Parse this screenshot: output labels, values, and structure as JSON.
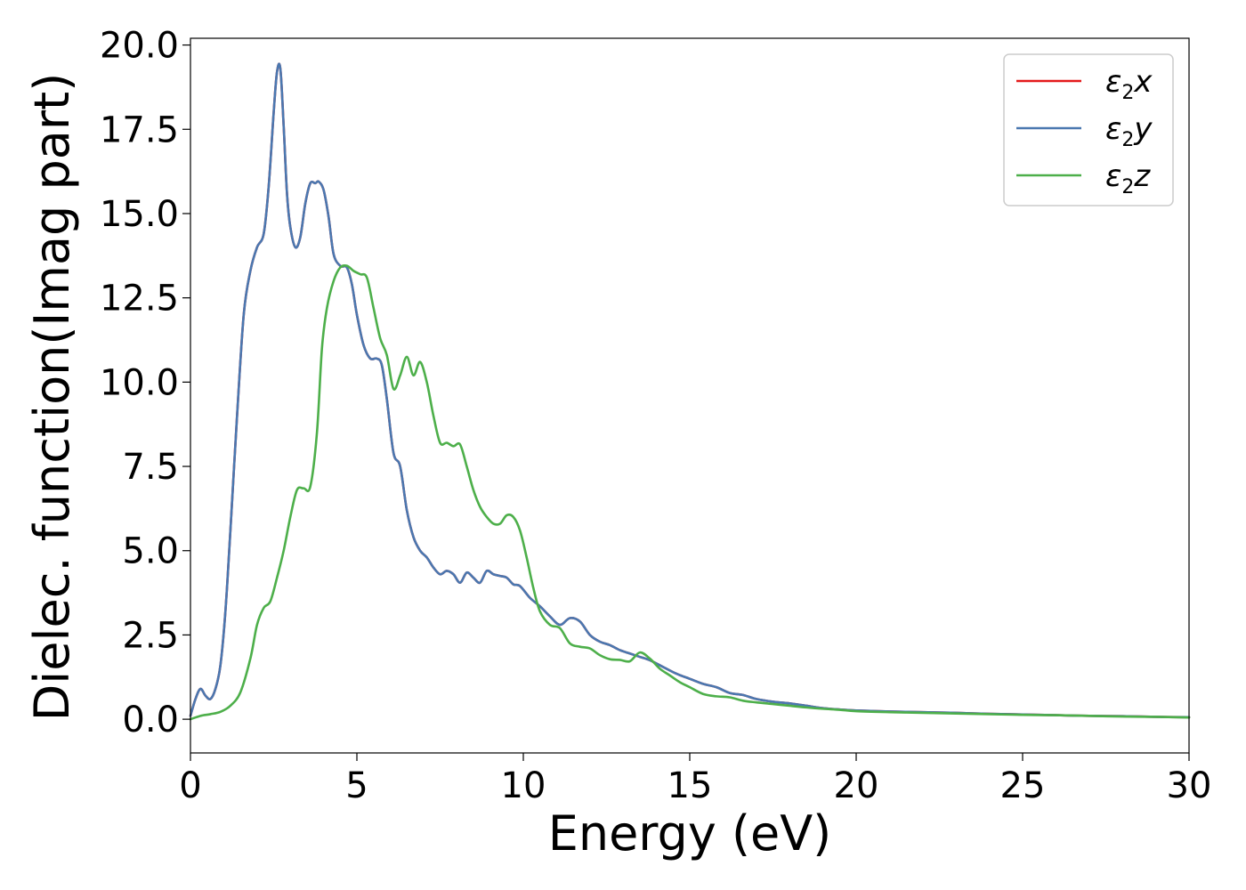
{
  "chart_data": {
    "type": "line",
    "title": "",
    "xlabel": "Energy (eV)",
    "ylabel": "Dielec. function(Imag part)",
    "xlim": [
      0,
      30
    ],
    "ylim": [
      -1,
      20.2
    ],
    "xticks": [
      0,
      5,
      10,
      15,
      20,
      25,
      30
    ],
    "xtick_labels": [
      "0",
      "5",
      "10",
      "15",
      "20",
      "25",
      "30"
    ],
    "yticks": [
      0,
      2.5,
      5,
      7.5,
      10,
      12.5,
      15,
      17.5,
      20
    ],
    "ytick_labels": [
      "0.0",
      "2.5",
      "5.0",
      "7.5",
      "10.0",
      "12.5",
      "15.0",
      "17.5",
      "20.0"
    ],
    "grid": false,
    "legend_position": "top-right",
    "series": [
      {
        "name": "ε2x",
        "legend_base": "ε",
        "legend_sub": "2",
        "legend_suffix": "x",
        "color": "#e41a1c",
        "x": [
          0,
          0.15,
          0.3,
          0.45,
          0.6,
          0.75,
          0.9,
          1.05,
          1.2,
          1.4,
          1.6,
          1.8,
          2.0,
          2.2,
          2.35,
          2.5,
          2.6,
          2.7,
          2.8,
          2.9,
          3.0,
          3.15,
          3.3,
          3.45,
          3.6,
          3.75,
          3.85,
          4.0,
          4.15,
          4.3,
          4.5,
          4.7,
          4.85,
          5.0,
          5.2,
          5.4,
          5.6,
          5.75,
          5.9,
          6.1,
          6.3,
          6.5,
          6.7,
          6.9,
          7.1,
          7.3,
          7.5,
          7.7,
          7.9,
          8.1,
          8.3,
          8.5,
          8.7,
          8.9,
          9.1,
          9.3,
          9.5,
          9.7,
          9.9,
          10.2,
          10.5,
          10.8,
          11.1,
          11.4,
          11.7,
          12.0,
          12.3,
          12.6,
          12.9,
          13.2,
          13.5,
          13.8,
          14.2,
          14.6,
          15.0,
          15.4,
          15.8,
          16.2,
          16.6,
          17.0,
          17.5,
          18.0,
          18.5,
          19.0,
          19.5,
          20.0,
          21.0,
          22.0,
          23.0,
          24.0,
          25.0,
          26.0,
          27.0,
          28.0,
          29.0,
          30.0
        ],
        "y": [
          0.1,
          0.6,
          0.9,
          0.7,
          0.6,
          0.9,
          1.6,
          3.2,
          5.6,
          9.0,
          12.0,
          13.3,
          14.0,
          14.4,
          15.8,
          18.0,
          19.2,
          19.3,
          17.6,
          15.6,
          14.6,
          14.0,
          14.3,
          15.3,
          15.9,
          15.9,
          15.95,
          15.7,
          14.9,
          13.8,
          13.45,
          13.4,
          12.9,
          12.0,
          11.1,
          10.7,
          10.7,
          10.5,
          9.5,
          7.9,
          7.5,
          6.2,
          5.4,
          5.0,
          4.8,
          4.5,
          4.3,
          4.4,
          4.3,
          4.05,
          4.35,
          4.2,
          4.05,
          4.4,
          4.3,
          4.25,
          4.2,
          4.0,
          3.95,
          3.6,
          3.35,
          3.05,
          2.8,
          3.0,
          2.9,
          2.5,
          2.3,
          2.2,
          2.05,
          1.95,
          1.85,
          1.75,
          1.55,
          1.35,
          1.2,
          1.05,
          0.95,
          0.78,
          0.72,
          0.6,
          0.52,
          0.47,
          0.4,
          0.33,
          0.29,
          0.26,
          0.23,
          0.21,
          0.19,
          0.16,
          0.14,
          0.12,
          0.1,
          0.09,
          0.07,
          0.06
        ]
      },
      {
        "name": "ε2y",
        "legend_base": "ε",
        "legend_sub": "2",
        "legend_suffix": "y",
        "color": "#4a78b0",
        "x": [
          0,
          0.15,
          0.3,
          0.45,
          0.6,
          0.75,
          0.9,
          1.05,
          1.2,
          1.4,
          1.6,
          1.8,
          2.0,
          2.2,
          2.35,
          2.5,
          2.6,
          2.7,
          2.8,
          2.9,
          3.0,
          3.15,
          3.3,
          3.45,
          3.6,
          3.75,
          3.85,
          4.0,
          4.15,
          4.3,
          4.5,
          4.7,
          4.85,
          5.0,
          5.2,
          5.4,
          5.6,
          5.75,
          5.9,
          6.1,
          6.3,
          6.5,
          6.7,
          6.9,
          7.1,
          7.3,
          7.5,
          7.7,
          7.9,
          8.1,
          8.3,
          8.5,
          8.7,
          8.9,
          9.1,
          9.3,
          9.5,
          9.7,
          9.9,
          10.2,
          10.5,
          10.8,
          11.1,
          11.4,
          11.7,
          12.0,
          12.3,
          12.6,
          12.9,
          13.2,
          13.5,
          13.8,
          14.2,
          14.6,
          15.0,
          15.4,
          15.8,
          16.2,
          16.6,
          17.0,
          17.5,
          18.0,
          18.5,
          19.0,
          19.5,
          20.0,
          21.0,
          22.0,
          23.0,
          24.0,
          25.0,
          26.0,
          27.0,
          28.0,
          29.0,
          30.0
        ],
        "y": [
          0.1,
          0.6,
          0.9,
          0.7,
          0.6,
          0.9,
          1.6,
          3.2,
          5.6,
          9.0,
          12.0,
          13.3,
          14.0,
          14.4,
          15.8,
          18.0,
          19.2,
          19.3,
          17.6,
          15.6,
          14.6,
          14.0,
          14.3,
          15.3,
          15.9,
          15.9,
          15.95,
          15.7,
          14.9,
          13.8,
          13.45,
          13.4,
          12.9,
          12.0,
          11.1,
          10.7,
          10.7,
          10.5,
          9.5,
          7.9,
          7.5,
          6.2,
          5.4,
          5.0,
          4.8,
          4.5,
          4.3,
          4.4,
          4.3,
          4.05,
          4.35,
          4.2,
          4.05,
          4.4,
          4.3,
          4.25,
          4.2,
          4.0,
          3.95,
          3.6,
          3.35,
          3.05,
          2.8,
          3.0,
          2.9,
          2.5,
          2.3,
          2.2,
          2.05,
          1.95,
          1.85,
          1.75,
          1.55,
          1.35,
          1.2,
          1.05,
          0.95,
          0.78,
          0.72,
          0.6,
          0.52,
          0.47,
          0.4,
          0.33,
          0.29,
          0.26,
          0.23,
          0.21,
          0.19,
          0.16,
          0.14,
          0.12,
          0.1,
          0.09,
          0.07,
          0.06
        ]
      },
      {
        "name": "ε2z",
        "legend_base": "ε",
        "legend_sub": "2",
        "legend_suffix": "z",
        "color": "#4daf4a",
        "x": [
          0,
          0.3,
          0.6,
          0.9,
          1.2,
          1.5,
          1.8,
          2.0,
          2.2,
          2.4,
          2.6,
          2.8,
          3.0,
          3.2,
          3.4,
          3.6,
          3.8,
          3.95,
          4.1,
          4.3,
          4.5,
          4.7,
          4.9,
          5.1,
          5.3,
          5.5,
          5.7,
          5.9,
          6.1,
          6.3,
          6.5,
          6.7,
          6.9,
          7.1,
          7.3,
          7.5,
          7.7,
          7.9,
          8.1,
          8.3,
          8.5,
          8.7,
          8.9,
          9.1,
          9.3,
          9.5,
          9.7,
          9.9,
          10.1,
          10.3,
          10.5,
          10.8,
          11.1,
          11.4,
          11.7,
          12.0,
          12.3,
          12.6,
          12.9,
          13.2,
          13.5,
          13.8,
          14.1,
          14.4,
          14.7,
          15.0,
          15.4,
          15.8,
          16.2,
          16.6,
          17.0,
          17.5,
          18.0,
          18.5,
          19.0,
          19.5,
          20.0,
          21.0,
          22.0,
          23.0,
          24.0,
          25.0,
          26.0,
          27.0,
          28.0,
          29.0,
          30.0
        ],
        "y": [
          0.0,
          0.1,
          0.15,
          0.22,
          0.4,
          0.8,
          1.8,
          2.8,
          3.3,
          3.5,
          4.2,
          5.0,
          6.0,
          6.8,
          6.85,
          6.9,
          8.5,
          11.0,
          12.2,
          13.0,
          13.4,
          13.45,
          13.3,
          13.2,
          13.1,
          12.2,
          11.3,
          10.8,
          9.8,
          10.2,
          10.75,
          10.2,
          10.6,
          10.0,
          9.0,
          8.2,
          8.2,
          8.1,
          8.15,
          7.5,
          6.8,
          6.3,
          6.0,
          5.8,
          5.8,
          6.05,
          6.0,
          5.6,
          4.8,
          3.9,
          3.2,
          2.8,
          2.7,
          2.25,
          2.15,
          2.1,
          1.9,
          1.78,
          1.76,
          1.72,
          1.98,
          1.8,
          1.5,
          1.3,
          1.1,
          0.95,
          0.75,
          0.68,
          0.65,
          0.55,
          0.5,
          0.45,
          0.4,
          0.35,
          0.31,
          0.28,
          0.24,
          0.21,
          0.19,
          0.17,
          0.15,
          0.13,
          0.12,
          0.1,
          0.08,
          0.07,
          0.05
        ]
      }
    ]
  }
}
